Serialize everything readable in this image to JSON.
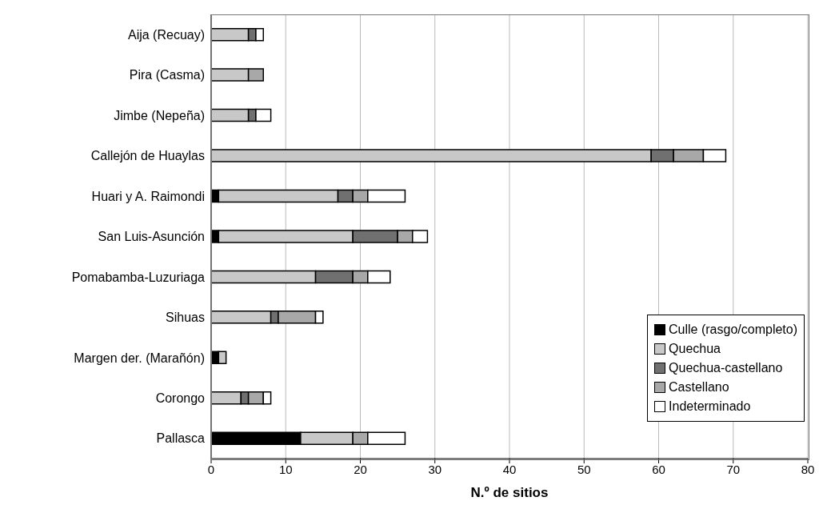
{
  "chart_data": {
    "type": "bar",
    "orientation": "horizontal",
    "stacked": true,
    "xlabel": "N.º de sitios",
    "categories": [
      "Aija (Recuay)",
      "Pira (Casma)",
      "Jimbe (Nepeña)",
      "Callejón de Huaylas",
      "Huari y A. Raimondi",
      "San Luis-Asunción",
      "Pomabamba-Luzuriaga",
      "Sihuas",
      "Margen der. (Marañón)",
      "Corongo",
      "Pallasca"
    ],
    "series": [
      {
        "name": "Culle (rasgo/completo)",
        "color": "#000000",
        "values": [
          0,
          0,
          0,
          0,
          1,
          1,
          0,
          0,
          1,
          0,
          12
        ]
      },
      {
        "name": "Quechua",
        "color": "#c8c8c8",
        "values": [
          5,
          5,
          5,
          59,
          16,
          18,
          14,
          8,
          1,
          4,
          7
        ]
      },
      {
        "name": "Quechua-castellano",
        "color": "#707070",
        "values": [
          1,
          0,
          1,
          3,
          2,
          6,
          5,
          1,
          0,
          1,
          0
        ]
      },
      {
        "name": "Castellano",
        "color": "#a8a8a8",
        "values": [
          0,
          2,
          0,
          4,
          2,
          2,
          2,
          5,
          0,
          2,
          2
        ]
      },
      {
        "name": "Indeterminado",
        "color": "#ffffff",
        "values": [
          1,
          0,
          2,
          3,
          5,
          2,
          3,
          1,
          0,
          1,
          5
        ]
      }
    ],
    "xlim": [
      0,
      80
    ],
    "xticks": [
      0,
      10,
      20,
      30,
      40,
      50,
      60,
      70,
      80
    ],
    "grid": "x",
    "legend": "bottom right"
  }
}
